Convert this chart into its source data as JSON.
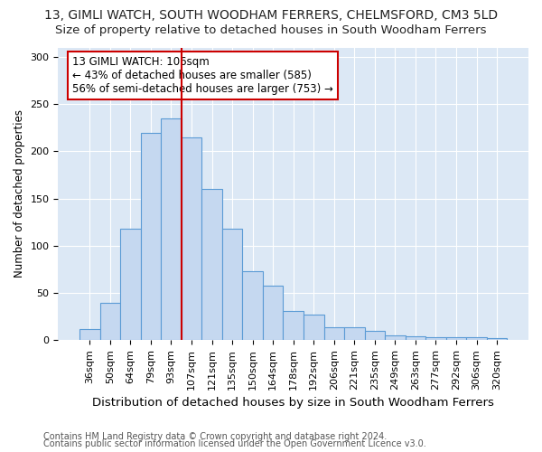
{
  "title1": "13, GIMLI WATCH, SOUTH WOODHAM FERRERS, CHELMSFORD, CM3 5LD",
  "title2": "Size of property relative to detached houses in South Woodham Ferrers",
  "xlabel": "Distribution of detached houses by size in South Woodham Ferrers",
  "ylabel": "Number of detached properties",
  "footer1": "Contains HM Land Registry data © Crown copyright and database right 2024.",
  "footer2": "Contains public sector information licensed under the Open Government Licence v3.0.",
  "bar_labels": [
    "36sqm",
    "50sqm",
    "64sqm",
    "79sqm",
    "93sqm",
    "107sqm",
    "121sqm",
    "135sqm",
    "150sqm",
    "164sqm",
    "178sqm",
    "192sqm",
    "206sqm",
    "221sqm",
    "235sqm",
    "249sqm",
    "263sqm",
    "277sqm",
    "292sqm",
    "306sqm",
    "320sqm"
  ],
  "bar_values": [
    12,
    40,
    118,
    220,
    235,
    215,
    160,
    118,
    73,
    58,
    31,
    27,
    14,
    14,
    10,
    5,
    4,
    3,
    3,
    3,
    2
  ],
  "bar_color": "#c5d8f0",
  "bar_edge_color": "#5b9bd5",
  "vline_index": 5,
  "vline_color": "#cc0000",
  "annotation_text": "13 GIMLI WATCH: 106sqm\n← 43% of detached houses are smaller (585)\n56% of semi-detached houses are larger (753) →",
  "annotation_box_color": "#ffffff",
  "annotation_box_edge": "#cc0000",
  "ylim": [
    0,
    310
  ],
  "yticks": [
    0,
    50,
    100,
    150,
    200,
    250,
    300
  ],
  "background_color": "#dce8f5",
  "fig_background": "#ffffff",
  "grid_color": "#ffffff",
  "title1_fontsize": 10,
  "title2_fontsize": 9.5,
  "xlabel_fontsize": 9.5,
  "ylabel_fontsize": 8.5,
  "tick_fontsize": 8,
  "annotation_fontsize": 8.5,
  "footer_fontsize": 7
}
